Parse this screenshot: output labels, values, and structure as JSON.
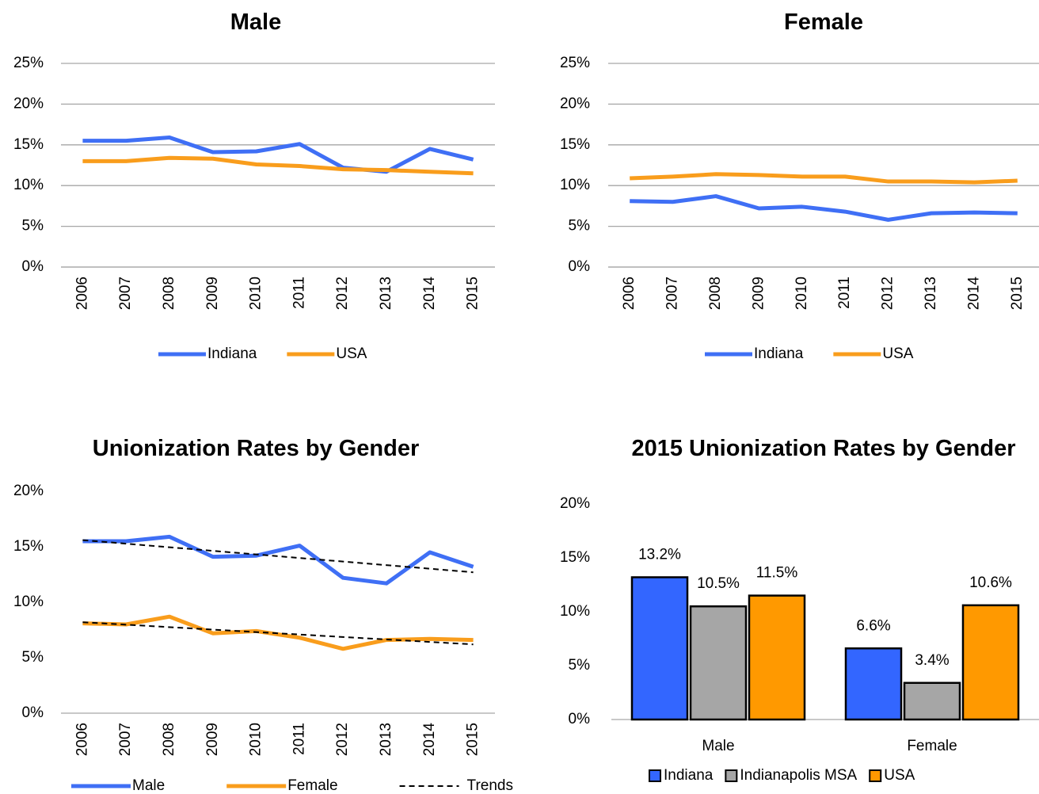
{
  "chart_data": [
    {
      "type": "line",
      "title": "Male",
      "categories": [
        "2006",
        "2007",
        "2008",
        "2009",
        "2010",
        "2011",
        "2012",
        "2013",
        "2014",
        "2015"
      ],
      "series": [
        {
          "name": "Indiana",
          "color": "#3f6ff5",
          "values": [
            15.5,
            15.5,
            15.9,
            14.1,
            14.2,
            15.1,
            12.2,
            11.7,
            14.5,
            13.2
          ]
        },
        {
          "name": "USA",
          "color": "#f99d1c",
          "values": [
            13.0,
            13.0,
            13.4,
            13.3,
            12.6,
            12.4,
            12.0,
            11.9,
            11.7,
            11.5
          ]
        }
      ],
      "ylim": [
        0,
        25
      ],
      "yticks": [
        {
          "value": 0,
          "label": "0%"
        },
        {
          "value": 5,
          "label": "5%"
        },
        {
          "value": 10,
          "label": "10%"
        },
        {
          "value": 15,
          "label": "15%"
        },
        {
          "value": 20,
          "label": "20%"
        },
        {
          "value": 25,
          "label": "25%"
        }
      ],
      "grid": true,
      "legend": "bottom"
    },
    {
      "type": "line",
      "title": "Female",
      "categories": [
        "2006",
        "2007",
        "2008",
        "2009",
        "2010",
        "2011",
        "2012",
        "2013",
        "2014",
        "2015"
      ],
      "series": [
        {
          "name": "Indiana",
          "color": "#3f6ff5",
          "values": [
            8.1,
            8.0,
            8.7,
            7.2,
            7.4,
            6.8,
            5.8,
            6.6,
            6.7,
            6.6
          ]
        },
        {
          "name": "USA",
          "color": "#f99d1c",
          "values": [
            10.9,
            11.1,
            11.4,
            11.3,
            11.1,
            11.1,
            10.5,
            10.5,
            10.4,
            10.6
          ]
        }
      ],
      "ylim": [
        0,
        25
      ],
      "yticks": [
        {
          "value": 0,
          "label": "0%"
        },
        {
          "value": 5,
          "label": "5%"
        },
        {
          "value": 10,
          "label": "10%"
        },
        {
          "value": 15,
          "label": "15%"
        },
        {
          "value": 20,
          "label": "20%"
        },
        {
          "value": 25,
          "label": "25%"
        }
      ],
      "grid": true,
      "legend": "bottom"
    },
    {
      "type": "line",
      "title": "Unionization Rates by Gender",
      "categories": [
        "2006",
        "2007",
        "2008",
        "2009",
        "2010",
        "2011",
        "2012",
        "2013",
        "2014",
        "2015"
      ],
      "series": [
        {
          "name": "Male",
          "color": "#3f6ff5",
          "values": [
            15.5,
            15.5,
            15.9,
            14.1,
            14.2,
            15.1,
            12.2,
            11.7,
            14.5,
            13.2
          ]
        },
        {
          "name": "Female",
          "color": "#f99d1c",
          "values": [
            8.1,
            8.0,
            8.7,
            7.2,
            7.4,
            6.8,
            5.8,
            6.6,
            6.7,
            6.6
          ]
        }
      ],
      "trends": {
        "name": "Trends",
        "color": "#000000",
        "lines": [
          [
            15.6,
            12.7
          ],
          [
            8.2,
            6.2
          ]
        ]
      },
      "ylim": [
        0,
        20
      ],
      "yticks": [
        {
          "value": 0,
          "label": "0%"
        },
        {
          "value": 5,
          "label": "5%"
        },
        {
          "value": 10,
          "label": "10%"
        },
        {
          "value": 15,
          "label": "15%"
        },
        {
          "value": 20,
          "label": "20%"
        }
      ],
      "grid": false,
      "legend": "bottom"
    },
    {
      "type": "bar",
      "title": "2015 Unionization Rates by Gender",
      "categories": [
        "Male",
        "Female"
      ],
      "series": [
        {
          "name": "Indiana",
          "color": "#3366ff",
          "values": [
            13.2,
            6.6
          ],
          "value_labels": [
            "13.2%",
            "6.6%"
          ]
        },
        {
          "name": "Indianapolis MSA",
          "color": "#a6a6a6",
          "values": [
            10.5,
            3.4
          ],
          "value_labels": [
            "10.5%",
            "3.4%"
          ]
        },
        {
          "name": "USA",
          "color": "#ff9900",
          "values": [
            11.5,
            10.6
          ],
          "value_labels": [
            "11.5%",
            "10.6%"
          ]
        }
      ],
      "ylim": [
        0,
        20
      ],
      "yticks": [
        {
          "value": 0,
          "label": "0%"
        },
        {
          "value": 5,
          "label": "5%"
        },
        {
          "value": 10,
          "label": "10%"
        },
        {
          "value": 15,
          "label": "15%"
        },
        {
          "value": 20,
          "label": "20%"
        }
      ],
      "grid": false,
      "legend": "bottom"
    }
  ]
}
